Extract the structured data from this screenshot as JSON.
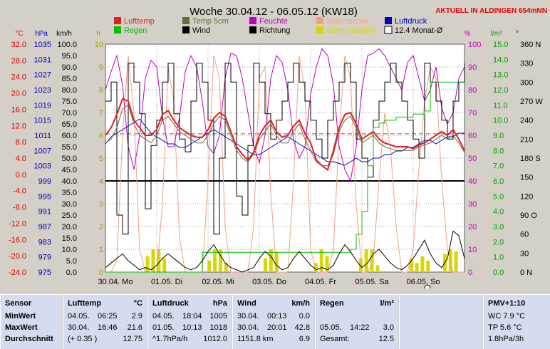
{
  "header": {
    "title": "Woche 30.04.12 - 06.05.12 (KW18)",
    "station_note": "AKTUELL IN ALDINGEN 654mNN"
  },
  "legend": [
    {
      "label": "Lufttemp",
      "color": "#e02020",
      "style": "fill"
    },
    {
      "label": "Temp 5cm",
      "color": "#6b6b3a",
      "style": "fill"
    },
    {
      "label": "Feuchte",
      "color": "#c000c0",
      "style": "fill"
    },
    {
      "label": "Solarsensor",
      "color": "#f4a080",
      "style": "fill"
    },
    {
      "label": "Luftdruck",
      "color": "#0000c0",
      "style": "fill"
    },
    {
      "label": "Regen",
      "color": "#00c000",
      "style": "fill"
    },
    {
      "label": "Wind",
      "color": "#000000",
      "style": "fill"
    },
    {
      "label": "Richtung",
      "color": "#000000",
      "style": "fill"
    },
    {
      "label": "Sonnenschein",
      "color": "#d8d800",
      "style": "fill"
    },
    {
      "label": "12.4 Monat-Ø",
      "color": "#ffffff",
      "style": "outline"
    }
  ],
  "colors": {
    "background": "#d4d0c8",
    "plot_bg": "#ffffff",
    "grid": "#a0a0a0",
    "temp_axis": "#e00000",
    "hpa_axis": "#0000c0",
    "kmh_axis": "#000000",
    "h_axis": "#a0a000",
    "pct_axis": "#c000c0",
    "rain_axis": "#00a000",
    "dir_axis": "#000000",
    "panel": "#d6dcef"
  },
  "chart_data": {
    "type": "line",
    "title": "Woche 30.04.12 - 06.05.12 (KW18)",
    "axes": {
      "temp": {
        "unit": "°C",
        "range": [
          -24,
          36
        ],
        "ticks": [
          "32.0",
          "28.0",
          "24.0",
          "20.0",
          "16.0",
          "12.0",
          "8.0",
          "4.0",
          "0.0",
          "-4.0",
          "-8.0",
          "-12.0",
          "-16.0",
          "-20.0",
          "-24.0"
        ]
      },
      "pressure": {
        "unit": "hPa",
        "range": [
          975,
          1039
        ],
        "ticks": [
          "1035",
          "1031",
          "1027",
          "1023",
          "1019",
          "1015",
          "1011",
          "1007",
          "1003",
          "999",
          "995",
          "991",
          "987",
          "983",
          "979",
          "975"
        ]
      },
      "wind": {
        "unit": "km/h",
        "range": [
          0,
          100
        ],
        "ticks": [
          "100.0",
          "95.0",
          "90.0",
          "85.0",
          "80.0",
          "75.0",
          "70.0",
          "65.0",
          "60.0",
          "55.0",
          "50.0",
          "45.0",
          "40.0",
          "35.0",
          "30.0",
          "25.0",
          "20.0",
          "15.0",
          "10.0",
          "5.0",
          "0.0"
        ]
      },
      "sunshine": {
        "unit": "h",
        "range": [
          0,
          10
        ],
        "ticks": [
          "10",
          "9",
          "8",
          "7",
          "6",
          "5",
          "4",
          "3",
          "2",
          "1",
          "0"
        ]
      },
      "humidity": {
        "unit": "%",
        "range": [
          0,
          100
        ],
        "ticks": [
          "100",
          "90",
          "80",
          "70",
          "60",
          "50",
          "40",
          "30",
          "20",
          "10",
          "0"
        ]
      },
      "rain": {
        "unit": "l/m²",
        "range": [
          0,
          15
        ],
        "ticks": [
          "15.0",
          "14.0",
          "13.0",
          "12.0",
          "11.0",
          "10.0",
          "9.0",
          "8.0",
          "7.0",
          "6.0",
          "5.0",
          "4.0",
          "3.0",
          "2.0",
          "1.0",
          "0.0"
        ]
      },
      "direction": {
        "unit": "°",
        "ticks": [
          "360 N",
          "330",
          "300",
          "270 W",
          "240",
          "210",
          "180 S",
          "150",
          "120",
          "90 O",
          "60",
          "30",
          "0 N"
        ]
      }
    },
    "x_labels": [
      "30.04. Mo",
      "01.05. Di",
      "02.05. Mi",
      "03.05. Do",
      "04.05. Fr",
      "05.05. Sa",
      "06.05. So"
    ],
    "series": [
      {
        "name": "Lufttemp",
        "axis": "temp",
        "values": [
          12,
          14,
          17.5,
          21.6,
          21,
          16,
          14,
          12,
          12,
          13.5,
          17.5,
          18.5,
          16,
          14,
          13,
          12,
          11.5,
          11.5,
          13.5,
          16.5,
          18,
          17,
          13,
          9,
          7,
          5.5,
          7.5,
          12,
          14.5,
          16,
          13,
          11.5,
          12,
          14.5,
          16,
          12.5,
          10,
          5.5,
          4,
          2.9,
          8,
          14,
          17.5,
          18,
          15,
          11,
          12,
          13,
          11,
          10,
          9.5,
          9,
          9,
          9,
          8.5,
          9.5,
          10,
          11,
          12,
          13,
          12,
          13.5,
          11,
          8
        ]
      },
      {
        "name": "Temp 5cm",
        "axis": "temp",
        "values": [
          10,
          11,
          14,
          19,
          20,
          15,
          12,
          11,
          10,
          12,
          16,
          17,
          15,
          13,
          12,
          11,
          10,
          10,
          12,
          15,
          17,
          16,
          12,
          8,
          6,
          5,
          7,
          11,
          13,
          15,
          12,
          10,
          10,
          13,
          15,
          11,
          8,
          5,
          4,
          4,
          7,
          13,
          16,
          17,
          14,
          10,
          11,
          12,
          10,
          9,
          8.5,
          8,
          8,
          8,
          8,
          9,
          9.5,
          10,
          11,
          12,
          11,
          12,
          10,
          7.5
        ]
      },
      {
        "name": "Feuchte",
        "axis": "humidity",
        "values": [
          80,
          88,
          95,
          82,
          55,
          45,
          60,
          85,
          93,
          90,
          68,
          55,
          55,
          68,
          88,
          95,
          90,
          75,
          55,
          52,
          60,
          85,
          96,
          95,
          85,
          70,
          55,
          48,
          60,
          85,
          95,
          92,
          80,
          58,
          50,
          55,
          78,
          90,
          98,
          95,
          82,
          55,
          45,
          40,
          55,
          80,
          95,
          96,
          98,
          95,
          90,
          85,
          80,
          92,
          95,
          85,
          75,
          80,
          90,
          72,
          65,
          70,
          85,
          90
        ]
      },
      {
        "name": "Solarsensor",
        "axis": "humidity",
        "values": [
          0,
          0,
          5,
          60,
          95,
          70,
          10,
          0,
          0,
          0,
          30,
          90,
          75,
          15,
          0,
          0,
          0,
          0,
          40,
          95,
          85,
          20,
          0,
          0,
          0,
          0,
          20,
          85,
          90,
          35,
          0,
          0,
          0,
          40,
          95,
          80,
          10,
          0,
          0,
          0,
          10,
          60,
          95,
          85,
          30,
          0,
          0,
          5,
          40,
          70,
          55,
          20,
          0,
          0,
          10,
          45,
          75,
          90,
          85,
          40,
          10,
          0,
          0,
          0
        ]
      },
      {
        "name": "Luftdruck",
        "axis": "pressure",
        "values": [
          1011,
          1013,
          1014,
          1015,
          1016,
          1017,
          1018,
          1016,
          1014,
          1013,
          1012,
          1011,
          1011,
          1010,
          1010,
          1011,
          1012,
          1013,
          1014,
          1015,
          1014,
          1013,
          1012,
          1011,
          1010,
          1009,
          1008,
          1008,
          1009,
          1010,
          1011,
          1012,
          1013,
          1012,
          1011,
          1010,
          1009,
          1008,
          1007,
          1006,
          1006,
          1005.5,
          1005,
          1006,
          1007,
          1006,
          1006,
          1007,
          1007,
          1008,
          1008,
          1009,
          1009,
          1010,
          1010,
          1011,
          1012,
          1012,
          1011,
          1012,
          1013,
          1013,
          1014,
          1014
        ]
      },
      {
        "name": "Wind",
        "axis": "wind",
        "values": [
          2,
          4,
          6,
          8,
          5,
          3,
          1,
          2,
          1,
          3,
          6,
          8,
          6,
          4,
          2,
          1,
          2,
          5,
          9,
          12,
          8,
          4,
          2,
          1,
          0,
          1,
          2,
          6,
          9,
          7,
          3,
          1,
          2,
          6,
          9,
          6,
          3,
          1,
          2,
          1,
          3,
          8,
          12,
          9,
          5,
          2,
          4,
          8,
          10,
          7,
          4,
          2,
          1,
          3,
          6,
          10,
          14,
          8,
          4,
          2,
          6,
          18,
          16,
          6
        ]
      },
      {
        "name": "Richtung",
        "axis": "direction",
        "values": [
          270,
          300,
          90,
          60,
          330,
          300,
          250,
          100,
          200,
          240,
          300,
          330,
          250,
          210,
          190,
          270,
          330,
          300,
          240,
          60,
          180,
          330,
          300,
          120,
          90,
          200,
          330,
          300,
          250,
          210,
          240,
          270,
          300,
          330,
          300,
          270,
          240,
          210,
          180,
          240,
          270,
          300,
          330,
          300,
          210,
          180,
          150,
          240,
          270,
          300,
          330,
          300,
          270,
          240,
          210,
          180,
          330,
          300,
          270,
          240,
          210,
          270,
          300,
          330
        ]
      },
      {
        "name": "Regen",
        "axis": "rain",
        "values": [
          0,
          0,
          0,
          0,
          0,
          0,
          0,
          0,
          0,
          0,
          0,
          0,
          0,
          0,
          0,
          0,
          0,
          1.3,
          1.3,
          1.3,
          1.3,
          1.3,
          1.3,
          1.3,
          1.3,
          1.3,
          1.3,
          1.3,
          1.3,
          1.3,
          1.3,
          1.3,
          1.3,
          1.3,
          1.3,
          1.3,
          1.3,
          1.3,
          1.3,
          1.3,
          1.3,
          1.3,
          1.3,
          1.5,
          2.5,
          4,
          7,
          9.5,
          9.8,
          10,
          10,
          10.2,
          10.2,
          10.2,
          10.4,
          10.4,
          10.6,
          12.5,
          12.5,
          12.5,
          12.5,
          12.5,
          12.5,
          12.5
        ]
      },
      {
        "name": "Sonnenschein",
        "axis": "sunshine",
        "values": [
          0,
          0,
          0,
          0,
          0,
          0,
          0,
          0.7,
          1,
          1,
          0.6,
          0,
          0,
          0,
          0,
          0,
          0,
          0,
          0.5,
          1,
          1,
          0.4,
          0,
          0,
          0,
          0,
          0,
          0,
          0.6,
          1,
          0.9,
          0,
          0,
          0,
          0,
          0,
          0,
          0.4,
          1,
          0.7,
          0,
          0,
          0,
          0,
          0,
          0.6,
          1,
          1,
          0.3,
          0,
          0,
          0,
          0,
          0,
          0.6,
          0.4,
          0.7,
          0.5,
          0,
          0,
          0.8,
          1,
          0.9,
          0
        ]
      }
    ],
    "reference_lines": [
      {
        "label": "12.4 Monat-Ø",
        "axis": "temp",
        "value": 12.4,
        "style": "dashed"
      },
      {
        "label": "0°C",
        "axis": "temp",
        "value": 0,
        "style": "solid"
      }
    ],
    "grid": true
  },
  "stats": {
    "sensor": {
      "title": "Sensor",
      "rows": [
        "MinWert",
        "MaxWert",
        "Durchschnitt"
      ]
    },
    "lufttemp": {
      "title": "Lufttemp",
      "unit": "°C",
      "min": [
        "04.05.",
        "06:25",
        "2.9"
      ],
      "max": [
        "30.04.",
        "16:46",
        "21.6"
      ],
      "avg": [
        "(+ 0.35 )",
        "",
        "12.75"
      ]
    },
    "luftdruck": {
      "title": "Luftdruck",
      "unit": "hPa",
      "min": [
        "04.05.",
        "18:04",
        "1005"
      ],
      "max": [
        "01.05.",
        "10:13",
        "1018"
      ],
      "avg": [
        "^1.7hPa/h",
        "",
        "1012.0"
      ]
    },
    "wind": {
      "title": "Wind",
      "unit": "km/h",
      "min": [
        "30.04.",
        "00:13",
        "0.0"
      ],
      "max": [
        "30.04.",
        "20:01",
        "42.8"
      ],
      "avg": [
        "1151.8 km",
        "",
        "6.9"
      ]
    },
    "regen": {
      "title": "Regen",
      "unit": "l/m²",
      "max": [
        "05.05.",
        "14:22",
        "3.0"
      ],
      "total": [
        "Gesamt:",
        "",
        "12.5"
      ]
    },
    "pmv": {
      "title": "PMV+1:10",
      "lines": [
        "WC 7.9 °C",
        "TP 5.6 °C",
        "1.8hPa/3h"
      ]
    }
  }
}
